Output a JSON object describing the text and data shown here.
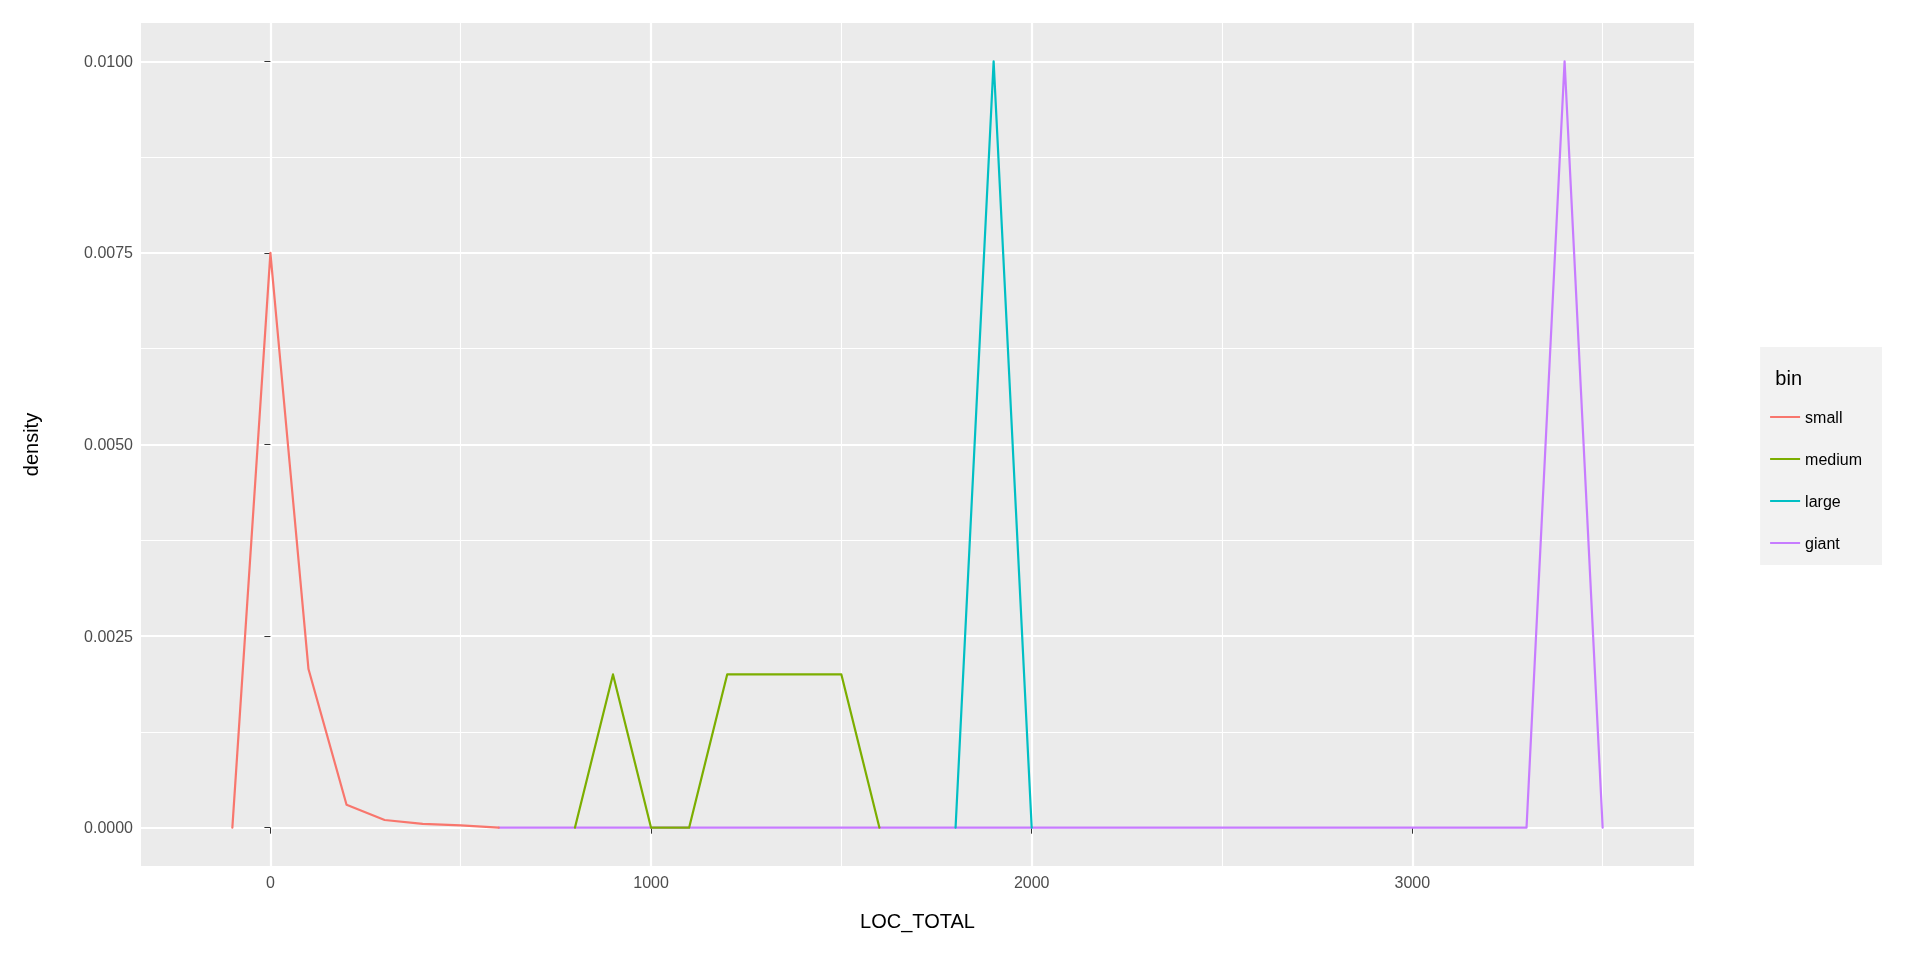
{
  "chart_data": {
    "type": "line",
    "xlabel": "LOC_TOTAL",
    "ylabel": "density",
    "legend_title": "bin",
    "legend": "right",
    "x": [
      -100,
      0,
      100,
      200,
      300,
      400,
      500,
      600,
      700,
      800,
      900,
      1000,
      1100,
      1200,
      1300,
      1400,
      1500,
      1600,
      1700,
      1800,
      1900,
      2000,
      2100,
      2200,
      2300,
      2400,
      2500,
      2600,
      2700,
      2800,
      2900,
      3000,
      3100,
      3200,
      3300,
      3400,
      3500
    ],
    "series": [
      {
        "name": "small",
        "color": "#f8766d",
        "values": [
          0,
          0.0075,
          0.00207,
          0.0003,
          0.0001,
          5e-05,
          3e-05,
          0,
          null,
          null,
          null,
          null,
          null,
          null,
          null,
          null,
          null,
          null,
          null,
          null,
          null,
          null,
          null,
          null,
          null,
          null,
          null,
          null,
          null,
          null,
          null,
          null,
          null,
          null,
          null,
          null,
          null
        ]
      },
      {
        "name": "medium",
        "color": "#7cae00",
        "values": [
          null,
          null,
          null,
          null,
          null,
          null,
          null,
          null,
          null,
          0,
          0.002,
          0,
          0,
          0.002,
          0.002,
          0.002,
          0.002,
          0,
          null,
          null,
          null,
          null,
          null,
          null,
          null,
          null,
          null,
          null,
          null,
          null,
          null,
          null,
          null,
          null,
          null,
          null,
          null
        ]
      },
      {
        "name": "large",
        "color": "#00bfc4",
        "values": [
          null,
          null,
          null,
          null,
          null,
          null,
          null,
          null,
          null,
          null,
          null,
          null,
          null,
          null,
          null,
          null,
          null,
          null,
          null,
          0,
          0.01,
          0,
          null,
          null,
          null,
          null,
          null,
          null,
          null,
          null,
          null,
          null,
          null,
          null,
          null,
          null,
          null
        ]
      },
      {
        "name": "giant",
        "color": "#c77cff",
        "values": [
          null,
          null,
          null,
          null,
          null,
          null,
          null,
          0,
          0,
          null,
          null,
          null,
          null,
          null,
          null,
          null,
          null,
          null,
          0,
          null,
          null,
          null,
          0,
          0,
          0,
          0,
          0,
          0,
          0,
          0,
          0,
          0,
          0,
          0,
          0,
          0.01,
          0
        ]
      }
    ],
    "xlim": [
      -340,
      3740
    ],
    "xticks": [
      0,
      1000,
      2000,
      3000
    ],
    "ylim": [
      -0.0005,
      0.0105
    ],
    "yticks": [
      {
        "value": 0,
        "label": "0.0000"
      },
      {
        "value": 0.0025,
        "label": "0.0025"
      },
      {
        "value": 0.005,
        "label": "0.0050"
      },
      {
        "value": 0.0075,
        "label": "0.0075"
      },
      {
        "value": 0.01,
        "label": "0.0100"
      }
    ],
    "grid": true,
    "marker": "none",
    "line_style": "solid"
  }
}
